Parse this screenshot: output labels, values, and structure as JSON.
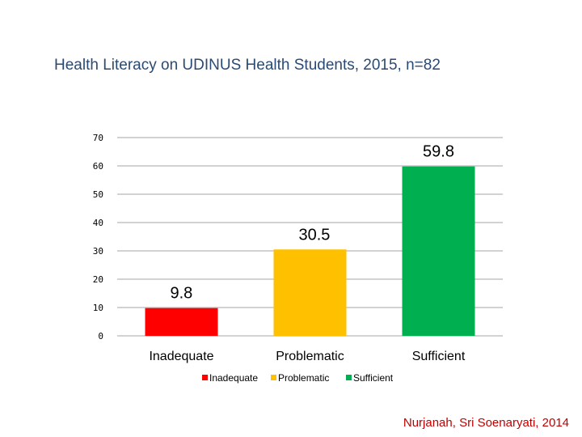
{
  "slide": {
    "title": "Health Literacy on UDINUS Health Students, 2015, n=82",
    "citation": "Nurjanah, Sri Soenaryati, 2014"
  },
  "chart_data": {
    "type": "bar",
    "categories": [
      "Inadequate",
      "Problematic",
      "Sufficient"
    ],
    "values": [
      9.8,
      30.5,
      59.8
    ],
    "data_labels": [
      "9.8",
      "30.5",
      "59.8"
    ],
    "colors": [
      "#ff0000",
      "#ffc000",
      "#00b050"
    ],
    "legend": [
      "Inadequate",
      "Problematic",
      "Sufficient"
    ],
    "legend_position": "bottom",
    "ylim": [
      0,
      70
    ],
    "yticks": [
      0,
      10,
      20,
      30,
      40,
      50,
      60,
      70
    ],
    "grid": true
  }
}
